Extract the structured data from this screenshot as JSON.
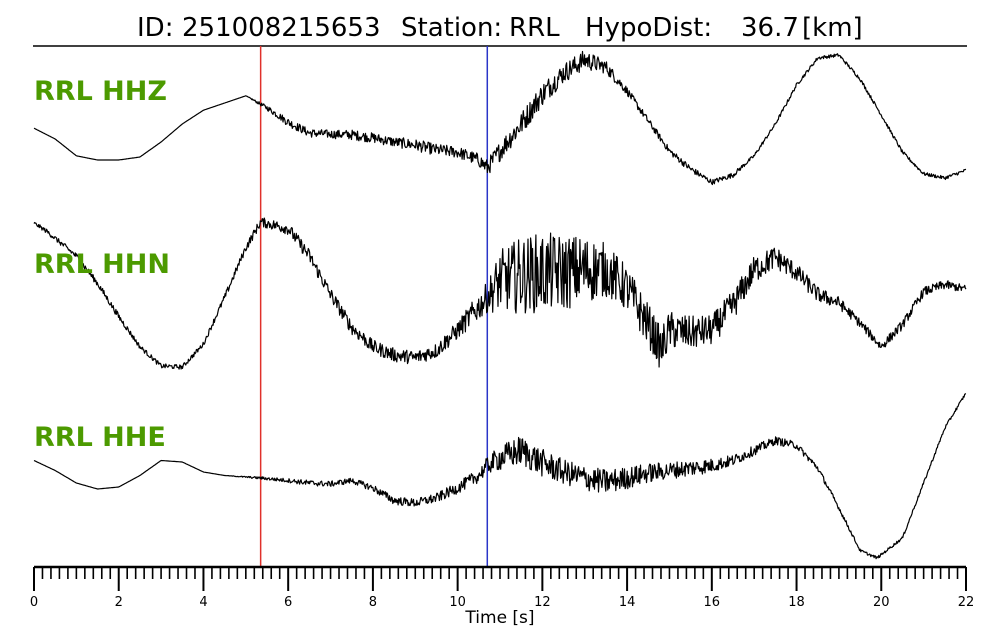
{
  "title": {
    "id_label": "ID:",
    "id_value": "251008215653",
    "station_label": "Station:",
    "station_value": "RRL",
    "hypodist_label": "HypoDist:",
    "hypodist_value": "36.7",
    "hypodist_unit": "[km]"
  },
  "chart_data": {
    "type": "line",
    "title": "ID: 251008215653   Station: RRL   HypoDist:    36.7 [km]",
    "xlabel": "Time [s]",
    "ylabel": "",
    "xlim": [
      0,
      22
    ],
    "x_major_ticks": [
      0,
      2,
      4,
      6,
      8,
      10,
      12,
      14,
      16,
      18,
      20,
      22
    ],
    "x_tick_labels": [
      "0",
      "2",
      "4",
      "6",
      "8",
      "10",
      "12",
      "14",
      "16",
      "18",
      "20",
      "22"
    ],
    "x_minor_step": 0.2,
    "grid": false,
    "markers": [
      {
        "name": "P pick",
        "time": 5.35,
        "color": "#e0302a"
      },
      {
        "name": "S pick",
        "time": 10.7,
        "color": "#2a35c8"
      }
    ],
    "series": [
      {
        "name": "RRL HHZ",
        "label_color": "#4c9a00",
        "x": [
          0,
          0.5,
          1,
          1.5,
          2,
          2.5,
          3,
          3.5,
          4,
          4.5,
          5,
          5.5,
          6,
          6.5,
          7,
          7.5,
          8,
          8.5,
          9,
          9.5,
          10,
          10.5,
          10.7,
          11,
          11.5,
          12,
          12.5,
          13,
          13.5,
          14,
          14.5,
          15,
          15.5,
          16,
          16.5,
          17,
          17.5,
          18,
          18.5,
          19,
          19.5,
          20,
          20.5,
          21,
          21.5,
          22
        ],
        "y": [
          0.28,
          0.1,
          -0.18,
          -0.25,
          -0.25,
          -0.2,
          0.05,
          0.35,
          0.58,
          0.7,
          0.82,
          0.62,
          0.38,
          0.2,
          0.18,
          0.17,
          0.12,
          0.05,
          0.0,
          -0.08,
          -0.12,
          -0.25,
          -0.38,
          -0.1,
          0.35,
          0.85,
          1.2,
          1.42,
          1.3,
          0.9,
          0.4,
          -0.1,
          -0.4,
          -0.62,
          -0.5,
          -0.18,
          0.35,
          1.0,
          1.45,
          1.5,
          1.1,
          0.5,
          -0.12,
          -0.48,
          -0.55,
          -0.42
        ],
        "noise": [
          0,
          0,
          0,
          0,
          0,
          0,
          0,
          0,
          0,
          0,
          0,
          0.03,
          0.05,
          0.05,
          0.05,
          0.06,
          0.06,
          0.06,
          0.07,
          0.07,
          0.07,
          0.08,
          0.1,
          0.12,
          0.14,
          0.14,
          0.12,
          0.12,
          0.08,
          0.05,
          0.04,
          0.04,
          0.04,
          0.03,
          0.03,
          0.02,
          0.02,
          0.02,
          0.02,
          0.02,
          0.02,
          0.02,
          0.02,
          0.02,
          0.02,
          0.02
        ]
      },
      {
        "name": "RRL HHN",
        "label_color": "#4c9a00",
        "x": [
          0,
          0.3,
          1,
          1.5,
          2,
          2.5,
          3,
          3.5,
          4,
          4.5,
          5,
          5.35,
          6,
          6.5,
          7,
          7.5,
          8,
          8.5,
          9,
          9.5,
          10,
          10.7,
          11,
          11.5,
          12,
          12.5,
          13,
          13.5,
          14,
          14.5,
          14.8,
          15,
          15.5,
          16,
          16.5,
          17,
          17.5,
          18,
          18.5,
          19,
          19.5,
          20,
          20.5,
          21,
          21.5,
          22
        ],
        "y": [
          1.4,
          1.25,
          0.8,
          0.3,
          -0.3,
          -0.85,
          -1.2,
          -1.22,
          -0.8,
          0.05,
          0.95,
          1.42,
          1.3,
          0.8,
          0.1,
          -0.5,
          -0.85,
          -1.0,
          -1.05,
          -0.92,
          -0.55,
          0.05,
          0.35,
          0.45,
          0.5,
          0.5,
          0.55,
          0.55,
          0.2,
          -0.45,
          -0.9,
          -0.55,
          -0.6,
          -0.55,
          -0.1,
          0.55,
          0.78,
          0.5,
          0.1,
          -0.05,
          -0.42,
          -0.85,
          -0.45,
          0.15,
          0.28,
          0.2
        ],
        "noise": [
          0.02,
          0.03,
          0.04,
          0.04,
          0.04,
          0.03,
          0.03,
          0.03,
          0.03,
          0.04,
          0.05,
          0.06,
          0.08,
          0.09,
          0.09,
          0.09,
          0.09,
          0.09,
          0.09,
          0.1,
          0.12,
          0.2,
          0.4,
          0.5,
          0.52,
          0.5,
          0.45,
          0.35,
          0.3,
          0.28,
          0.28,
          0.25,
          0.22,
          0.2,
          0.2,
          0.18,
          0.15,
          0.12,
          0.1,
          0.08,
          0.06,
          0.06,
          0.06,
          0.06,
          0.06,
          0.05
        ]
      },
      {
        "name": "RRL HHE",
        "label_color": "#4c9a00",
        "x": [
          0,
          0.5,
          1,
          1.5,
          2,
          2.5,
          3,
          3.5,
          4,
          4.5,
          5,
          5.35,
          6,
          6.5,
          7,
          7.5,
          8,
          8.5,
          9,
          9.5,
          10,
          10.5,
          10.7,
          11,
          11.5,
          12,
          12.5,
          13,
          13.5,
          14,
          14.5,
          15,
          15.5,
          16,
          16.5,
          17,
          17.5,
          18,
          18.5,
          19,
          19.5,
          19.9,
          20.5,
          21,
          21.5,
          22
        ],
        "y": [
          0.35,
          0.15,
          -0.1,
          -0.22,
          -0.18,
          0.05,
          0.35,
          0.32,
          0.12,
          0.05,
          0.02,
          0.0,
          -0.05,
          -0.1,
          -0.12,
          -0.05,
          -0.2,
          -0.45,
          -0.5,
          -0.4,
          -0.2,
          0.05,
          0.25,
          0.4,
          0.55,
          0.3,
          0.12,
          0.0,
          -0.08,
          0.0,
          0.1,
          0.15,
          0.2,
          0.25,
          0.35,
          0.55,
          0.75,
          0.65,
          0.2,
          -0.6,
          -1.45,
          -1.6,
          -1.2,
          -0.1,
          1.0,
          1.7
        ],
        "noise": [
          0,
          0,
          0,
          0,
          0,
          0,
          0,
          0,
          0,
          0,
          0.01,
          0.02,
          0.03,
          0.04,
          0.04,
          0.04,
          0.05,
          0.06,
          0.06,
          0.07,
          0.08,
          0.1,
          0.12,
          0.18,
          0.22,
          0.2,
          0.18,
          0.18,
          0.18,
          0.16,
          0.14,
          0.12,
          0.12,
          0.1,
          0.08,
          0.07,
          0.06,
          0.05,
          0.04,
          0.03,
          0.02,
          0.02,
          0.02,
          0.02,
          0.02,
          0.02
        ]
      }
    ]
  }
}
